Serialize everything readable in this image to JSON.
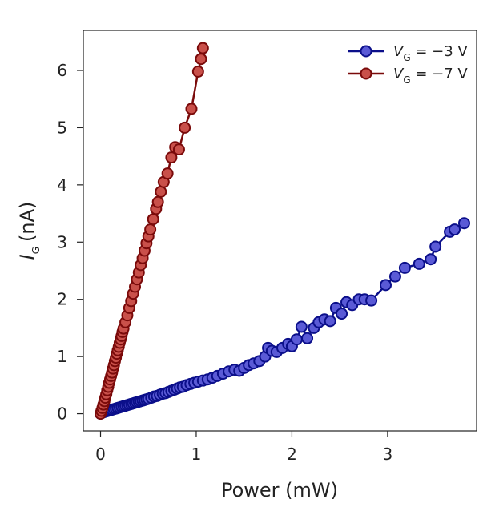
{
  "chart_data": {
    "type": "scatter",
    "xlabel": "Power (mW)",
    "ylabel_main": "I",
    "ylabel_sub": "G",
    "ylabel_unit": "(nA)",
    "xlim": [
      -0.18,
      3.93
    ],
    "ylim": [
      -0.3,
      6.7
    ],
    "xticks": [
      0,
      1,
      2,
      3
    ],
    "yticks": [
      0,
      1,
      2,
      3,
      4,
      5,
      6
    ],
    "grid": false,
    "legend_position": "top-right",
    "series": [
      {
        "legend_var": "V",
        "legend_sub": "G",
        "legend_value": " = −3 V",
        "color": "#0b0f8a",
        "fill": "#5a5ad6",
        "x": [
          0.0,
          0.02,
          0.04,
          0.06,
          0.08,
          0.1,
          0.12,
          0.14,
          0.16,
          0.18,
          0.2,
          0.22,
          0.24,
          0.26,
          0.28,
          0.3,
          0.32,
          0.34,
          0.36,
          0.38,
          0.4,
          0.42,
          0.44,
          0.46,
          0.48,
          0.5,
          0.53,
          0.56,
          0.59,
          0.62,
          0.65,
          0.68,
          0.71,
          0.74,
          0.77,
          0.8,
          0.83,
          0.86,
          0.9,
          0.94,
          0.98,
          1.02,
          1.07,
          1.12,
          1.17,
          1.22,
          1.28,
          1.34,
          1.4,
          1.45,
          1.5,
          1.55,
          1.6,
          1.66,
          1.72,
          1.75,
          1.79,
          1.84,
          1.9,
          1.96,
          2.0,
          2.05,
          2.1,
          2.16,
          2.23,
          2.28,
          2.34,
          2.4,
          2.46,
          2.52,
          2.57,
          2.63,
          2.7,
          2.76,
          2.83,
          2.98,
          3.08,
          3.18,
          3.33,
          3.45,
          3.5,
          3.65,
          3.7,
          3.8
        ],
        "y": [
          0.0,
          0.02,
          0.03,
          0.04,
          0.05,
          0.06,
          0.07,
          0.08,
          0.09,
          0.1,
          0.11,
          0.12,
          0.13,
          0.14,
          0.15,
          0.16,
          0.17,
          0.18,
          0.19,
          0.2,
          0.21,
          0.22,
          0.23,
          0.24,
          0.25,
          0.26,
          0.28,
          0.3,
          0.31,
          0.33,
          0.35,
          0.36,
          0.38,
          0.4,
          0.42,
          0.44,
          0.46,
          0.47,
          0.5,
          0.52,
          0.54,
          0.56,
          0.58,
          0.6,
          0.63,
          0.66,
          0.7,
          0.74,
          0.77,
          0.75,
          0.8,
          0.85,
          0.88,
          0.92,
          1.0,
          1.15,
          1.1,
          1.08,
          1.15,
          1.22,
          1.18,
          1.3,
          1.52,
          1.32,
          1.5,
          1.6,
          1.65,
          1.62,
          1.85,
          1.75,
          1.95,
          1.9,
          2.0,
          2.0,
          1.98,
          2.25,
          2.4,
          2.55,
          2.62,
          2.7,
          2.92,
          3.18,
          3.22,
          3.33
        ]
      },
      {
        "legend_var": "V",
        "legend_sub": "G",
        "legend_value": " = −7 V",
        "color": "#7a0a0a",
        "fill": "#c9504a",
        "x": [
          0.0,
          0.01,
          0.02,
          0.03,
          0.04,
          0.05,
          0.06,
          0.07,
          0.08,
          0.09,
          0.1,
          0.11,
          0.12,
          0.13,
          0.14,
          0.15,
          0.16,
          0.17,
          0.18,
          0.19,
          0.2,
          0.21,
          0.22,
          0.23,
          0.24,
          0.26,
          0.28,
          0.3,
          0.32,
          0.34,
          0.36,
          0.38,
          0.4,
          0.42,
          0.44,
          0.46,
          0.48,
          0.5,
          0.52,
          0.55,
          0.58,
          0.6,
          0.63,
          0.66,
          0.7,
          0.74,
          0.78,
          0.82,
          0.88,
          0.95,
          1.02,
          1.05,
          1.07
        ],
        "y": [
          0.0,
          0.05,
          0.1,
          0.16,
          0.22,
          0.28,
          0.34,
          0.41,
          0.47,
          0.54,
          0.6,
          0.66,
          0.72,
          0.79,
          0.85,
          0.92,
          0.98,
          1.05,
          1.11,
          1.17,
          1.24,
          1.3,
          1.36,
          1.43,
          1.49,
          1.6,
          1.72,
          1.85,
          1.97,
          2.1,
          2.22,
          2.35,
          2.47,
          2.6,
          2.72,
          2.85,
          2.98,
          3.1,
          3.22,
          3.4,
          3.58,
          3.7,
          3.88,
          4.05,
          4.2,
          4.48,
          4.66,
          4.62,
          5.0,
          5.33,
          5.98,
          6.2,
          6.39
        ]
      }
    ]
  }
}
